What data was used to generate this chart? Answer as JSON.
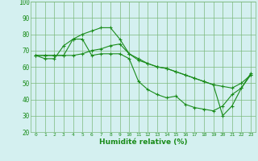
{
  "xlabel": "Humidité relative (%)",
  "ylabel": "",
  "background_color": "#d4f0f0",
  "grid_color": "#7cb87c",
  "line_color": "#1a8c1a",
  "xlim": [
    -0.5,
    23.5
  ],
  "ylim": [
    20,
    100
  ],
  "yticks": [
    20,
    30,
    40,
    50,
    60,
    70,
    80,
    90,
    100
  ],
  "xticks": [
    0,
    1,
    2,
    3,
    4,
    5,
    6,
    7,
    8,
    9,
    10,
    11,
    12,
    13,
    14,
    15,
    16,
    17,
    18,
    19,
    20,
    21,
    22,
    23
  ],
  "series": [
    [
      67,
      65,
      65,
      73,
      77,
      77,
      67,
      68,
      68,
      68,
      65,
      51,
      46,
      43,
      41,
      42,
      37,
      35,
      34,
      33,
      36,
      43,
      47,
      56
    ],
    [
      67,
      67,
      67,
      67,
      67,
      68,
      70,
      71,
      73,
      74,
      68,
      64,
      62,
      60,
      59,
      57,
      55,
      53,
      51,
      49,
      48,
      47,
      50,
      55
    ],
    [
      67,
      67,
      67,
      67,
      77,
      80,
      82,
      84,
      84,
      77,
      68,
      65,
      62,
      60,
      59,
      57,
      55,
      53,
      51,
      49,
      30,
      36,
      47,
      55
    ]
  ]
}
